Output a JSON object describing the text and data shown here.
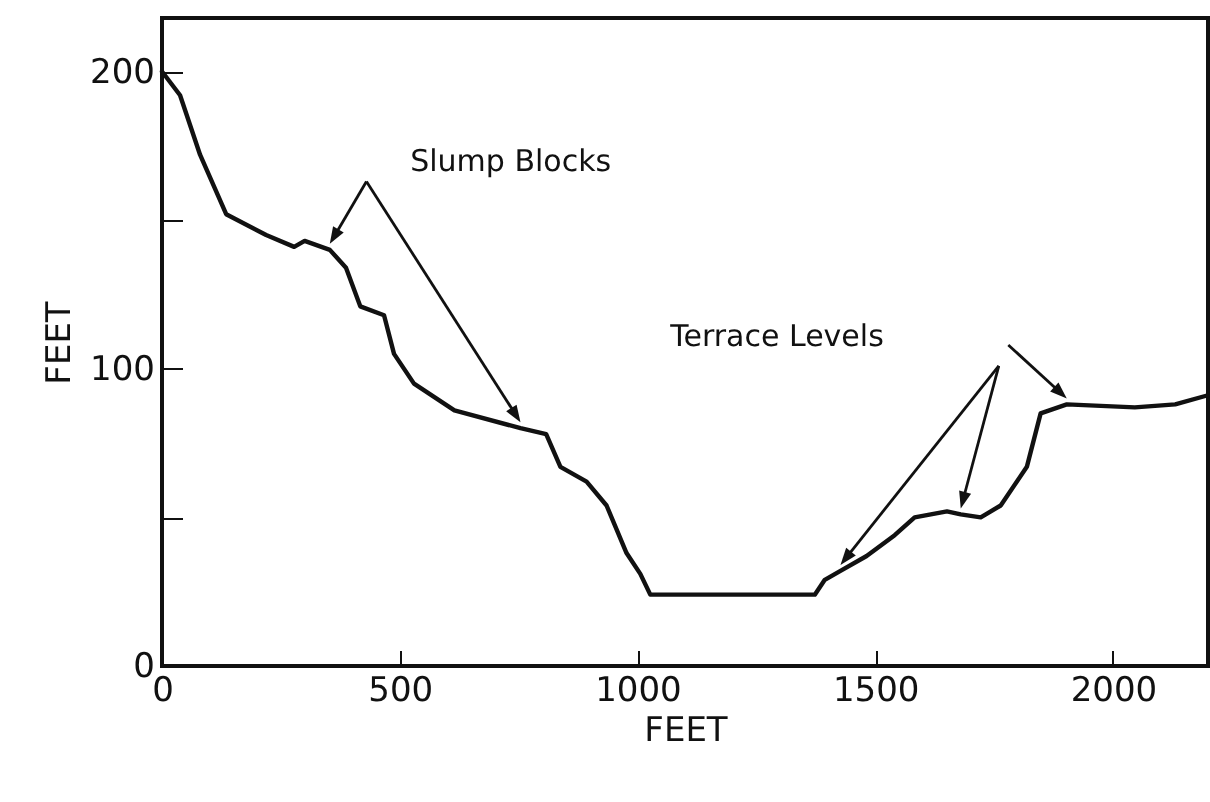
{
  "chart_data": {
    "type": "line",
    "xlabel": "FEET",
    "ylabel": "FEET",
    "annotations": [
      "Slump Blocks",
      "Terrace Levels"
    ],
    "x": [
      0,
      38,
      80,
      135,
      219,
      278,
      300,
      353,
      387,
      417,
      467,
      488,
      530,
      615,
      754,
      808,
      838,
      893,
      935,
      977,
      1006,
      1027,
      1373,
      1394,
      1427,
      1482,
      1541,
      1583,
      1651,
      1680,
      1722,
      1764,
      1819,
      1848,
      1903,
      2046,
      2131,
      2198
    ],
    "series": [
      {
        "color": "#111111",
        "values": [
          200,
          192,
          172,
          152,
          145,
          141,
          143,
          140,
          134,
          121,
          118,
          105,
          95,
          86,
          80,
          78,
          67,
          62,
          54,
          38,
          31,
          24,
          24,
          29,
          32,
          37,
          44,
          50,
          52,
          51,
          50,
          54,
          67,
          85,
          88,
          87,
          88,
          91
        ]
      }
    ],
    "xlim": [
      0,
      2200
    ],
    "ylim": [
      0,
      218
    ],
    "xticks": [
      0,
      500,
      1000,
      1500,
      2000
    ],
    "yticks": [
      0,
      {
        "value": 50,
        "label": null
      },
      100,
      {
        "value": 150,
        "label": null
      },
      200
    ],
    "grid": false,
    "marker": "none",
    "line_style": "solid"
  }
}
